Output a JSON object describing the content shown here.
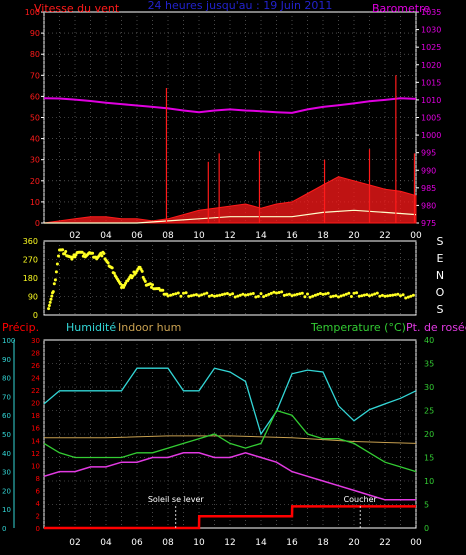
{
  "colors": {
    "wind": "#ff1a1a",
    "gust": "#ffffcc",
    "baro": "#e000e0",
    "dir": "#ffff22",
    "rain": "#ff0000",
    "hum": "#33d6d6",
    "indoor": "#c8a050",
    "temp": "#33cc33",
    "dew": "#e23ae2",
    "grid": "#777777",
    "axis": "#ffffff",
    "title": "#2222cc"
  },
  "x_ticks": [
    "02",
    "04",
    "06",
    "08",
    "10",
    "12",
    "14",
    "16",
    "18",
    "20",
    "22",
    "00"
  ],
  "annotations": {
    "sunrise_label": "Soleil se lever",
    "sunset_label": "Coucher",
    "sunrise_hour": 8.5,
    "sunset_hour": 20.4
  },
  "chart_data": [
    {
      "type": "line",
      "title": "24 heures jusqu'au : 19 Juin 2011",
      "left_label": "Vitesse du vent",
      "right_label": "Barometre",
      "left_ticks": [
        "0",
        "10",
        "20",
        "30",
        "40",
        "50",
        "60",
        "70",
        "80",
        "90",
        "100"
      ],
      "right_ticks": [
        "975",
        "980",
        "985",
        "990",
        "995",
        "1000",
        "1005",
        "1010",
        "1015",
        "1020",
        "1025",
        "1030",
        "1035"
      ],
      "ylim_left": [
        0,
        100
      ],
      "ylim_right": [
        975,
        1035
      ],
      "grid": true,
      "series": [
        {
          "key": "barometer",
          "axis": "right",
          "x": [
            0,
            1,
            2,
            3,
            4,
            5,
            6,
            7,
            8,
            9,
            10,
            11,
            12,
            13,
            14,
            15,
            16,
            17,
            18,
            19,
            20,
            21,
            22,
            23,
            24
          ],
          "values": [
            1010.5,
            1010.4,
            1010.1,
            1009.7,
            1009.2,
            1008.8,
            1008.4,
            1008.0,
            1007.6,
            1007.0,
            1006.5,
            1007.0,
            1007.3,
            1007.0,
            1006.8,
            1006.5,
            1006.3,
            1007.3,
            1008.0,
            1008.5,
            1009.0,
            1009.6,
            1010.0,
            1010.5,
            1010.3
          ]
        },
        {
          "key": "wind_speed",
          "axis": "left",
          "x": [
            0,
            1,
            2,
            3,
            4,
            5,
            6,
            7,
            8,
            9,
            10,
            11,
            12,
            13,
            14,
            15,
            16,
            17,
            18,
            19,
            20,
            21,
            22,
            23,
            24
          ],
          "values": [
            0,
            1,
            2,
            3,
            3,
            2,
            2,
            1,
            2,
            4,
            6,
            7,
            8,
            9,
            7,
            9,
            10,
            14,
            18,
            22,
            20,
            18,
            16,
            15,
            13
          ]
        },
        {
          "key": "wind_gust",
          "axis": "left",
          "x": [
            0,
            2,
            4,
            6,
            8,
            10,
            12,
            14,
            16,
            18,
            20,
            22,
            24
          ],
          "values": [
            0,
            0,
            0,
            0,
            1,
            2,
            3,
            3,
            3,
            5,
            6,
            5,
            4
          ]
        }
      ],
      "spikes": [
        {
          "x": 7.9,
          "value": 64
        },
        {
          "x": 10.6,
          "value": 29
        },
        {
          "x": 11.3,
          "value": 33
        },
        {
          "x": 13.9,
          "value": 34
        },
        {
          "x": 18.1,
          "value": 30
        },
        {
          "x": 21.0,
          "value": 35
        },
        {
          "x": 22.7,
          "value": 70
        },
        {
          "x": 23.9,
          "value": 33
        }
      ]
    },
    {
      "type": "scatter",
      "title": "",
      "left_ticks": [
        "0",
        "90",
        "180",
        "270",
        "360"
      ],
      "right_labels": [
        "S",
        "E",
        "N",
        "O",
        "S"
      ],
      "ylim": [
        0,
        360
      ],
      "series": [
        {
          "key": "wind_direction",
          "x": [
            0.3,
            0.6,
            1.0,
            1.4,
            1.8,
            2.2,
            2.6,
            3.0,
            3.4,
            3.8,
            4.2,
            4.6,
            5.0,
            5.4,
            5.8,
            6.2,
            6.6,
            7.0,
            7.5,
            8.0,
            9,
            10,
            11,
            12,
            13,
            14,
            15,
            16,
            17,
            18,
            19,
            20,
            21,
            22,
            23,
            24
          ],
          "values": [
            40,
            110,
            320,
            300,
            270,
            310,
            290,
            300,
            280,
            300,
            240,
            200,
            130,
            170,
            200,
            230,
            150,
            140,
            120,
            100,
            100,
            95,
            100,
            95,
            100,
            95,
            105,
            100,
            95,
            100,
            95,
            100,
            95,
            100,
            90,
            95
          ]
        }
      ]
    },
    {
      "type": "line",
      "title": "",
      "labels": {
        "rain": "Précip.",
        "humidity": "Humidité",
        "indoor": "Indoor hum",
        "temp": "Temperature (°C)",
        "dew": "Pt. de rosée"
      },
      "hum_ticks": [
        "0",
        "10",
        "20",
        "30",
        "40",
        "50",
        "60",
        "70",
        "80",
        "90",
        "100"
      ],
      "rain_ticks": [
        "0",
        "2",
        "4",
        "6",
        "8",
        "10",
        "12",
        "14",
        "16",
        "18",
        "20",
        "22",
        "24",
        "26",
        "28",
        "30"
      ],
      "temp_ticks": [
        "0",
        "5",
        "10",
        "15",
        "20",
        "25",
        "30",
        "35",
        "40"
      ],
      "ylim_hum": [
        0,
        100
      ],
      "ylim_temp": [
        0,
        40
      ],
      "series": [
        {
          "key": "humidity",
          "axis": "hum",
          "x": [
            0,
            1,
            2,
            3,
            4,
            5,
            6,
            7,
            8,
            9,
            10,
            11,
            12,
            13,
            14,
            15,
            16,
            17,
            18,
            19,
            20,
            21,
            22,
            23,
            24
          ],
          "values": [
            66,
            73,
            73,
            73,
            73,
            73,
            85,
            85,
            85,
            73,
            73,
            85,
            83,
            78,
            50,
            62,
            82,
            84,
            83,
            65,
            57,
            63,
            66,
            69,
            73
          ]
        },
        {
          "key": "indoor_humidity",
          "axis": "hum",
          "x": [
            0,
            4,
            8,
            12,
            16,
            20,
            24
          ],
          "values": [
            48,
            48,
            49,
            49,
            48,
            46,
            45
          ]
        },
        {
          "key": "temperature",
          "axis": "temp",
          "x": [
            0,
            1,
            2,
            3,
            4,
            5,
            6,
            7,
            8,
            9,
            10,
            11,
            12,
            13,
            14,
            15,
            16,
            17,
            18,
            19,
            20,
            21,
            22,
            23,
            24
          ],
          "values": [
            18,
            16,
            15,
            15,
            15,
            15,
            16,
            16,
            17,
            18,
            19,
            20,
            18,
            17,
            18,
            25,
            24,
            20,
            19,
            19,
            18,
            16,
            14,
            13,
            12
          ]
        },
        {
          "key": "dewpoint",
          "axis": "temp",
          "x": [
            0,
            1,
            2,
            3,
            4,
            5,
            6,
            7,
            8,
            9,
            10,
            11,
            12,
            13,
            14,
            15,
            16,
            17,
            18,
            19,
            20,
            21,
            22,
            23,
            24
          ],
          "values": [
            11,
            12,
            12,
            13,
            13,
            14,
            14,
            15,
            15,
            16,
            16,
            15,
            15,
            16,
            15,
            14,
            12,
            11,
            10,
            9,
            8,
            7,
            6,
            6,
            6
          ]
        },
        {
          "key": "precipitation",
          "axis": "rain",
          "x": [
            0,
            1,
            2,
            3,
            4,
            5,
            6,
            7,
            8,
            9,
            10,
            10.01,
            16,
            16.01,
            24
          ],
          "values": [
            0,
            0,
            0,
            0,
            0,
            0,
            0,
            0,
            0,
            0,
            0,
            2.5,
            2.5,
            4.6,
            4.6
          ]
        }
      ]
    }
  ]
}
